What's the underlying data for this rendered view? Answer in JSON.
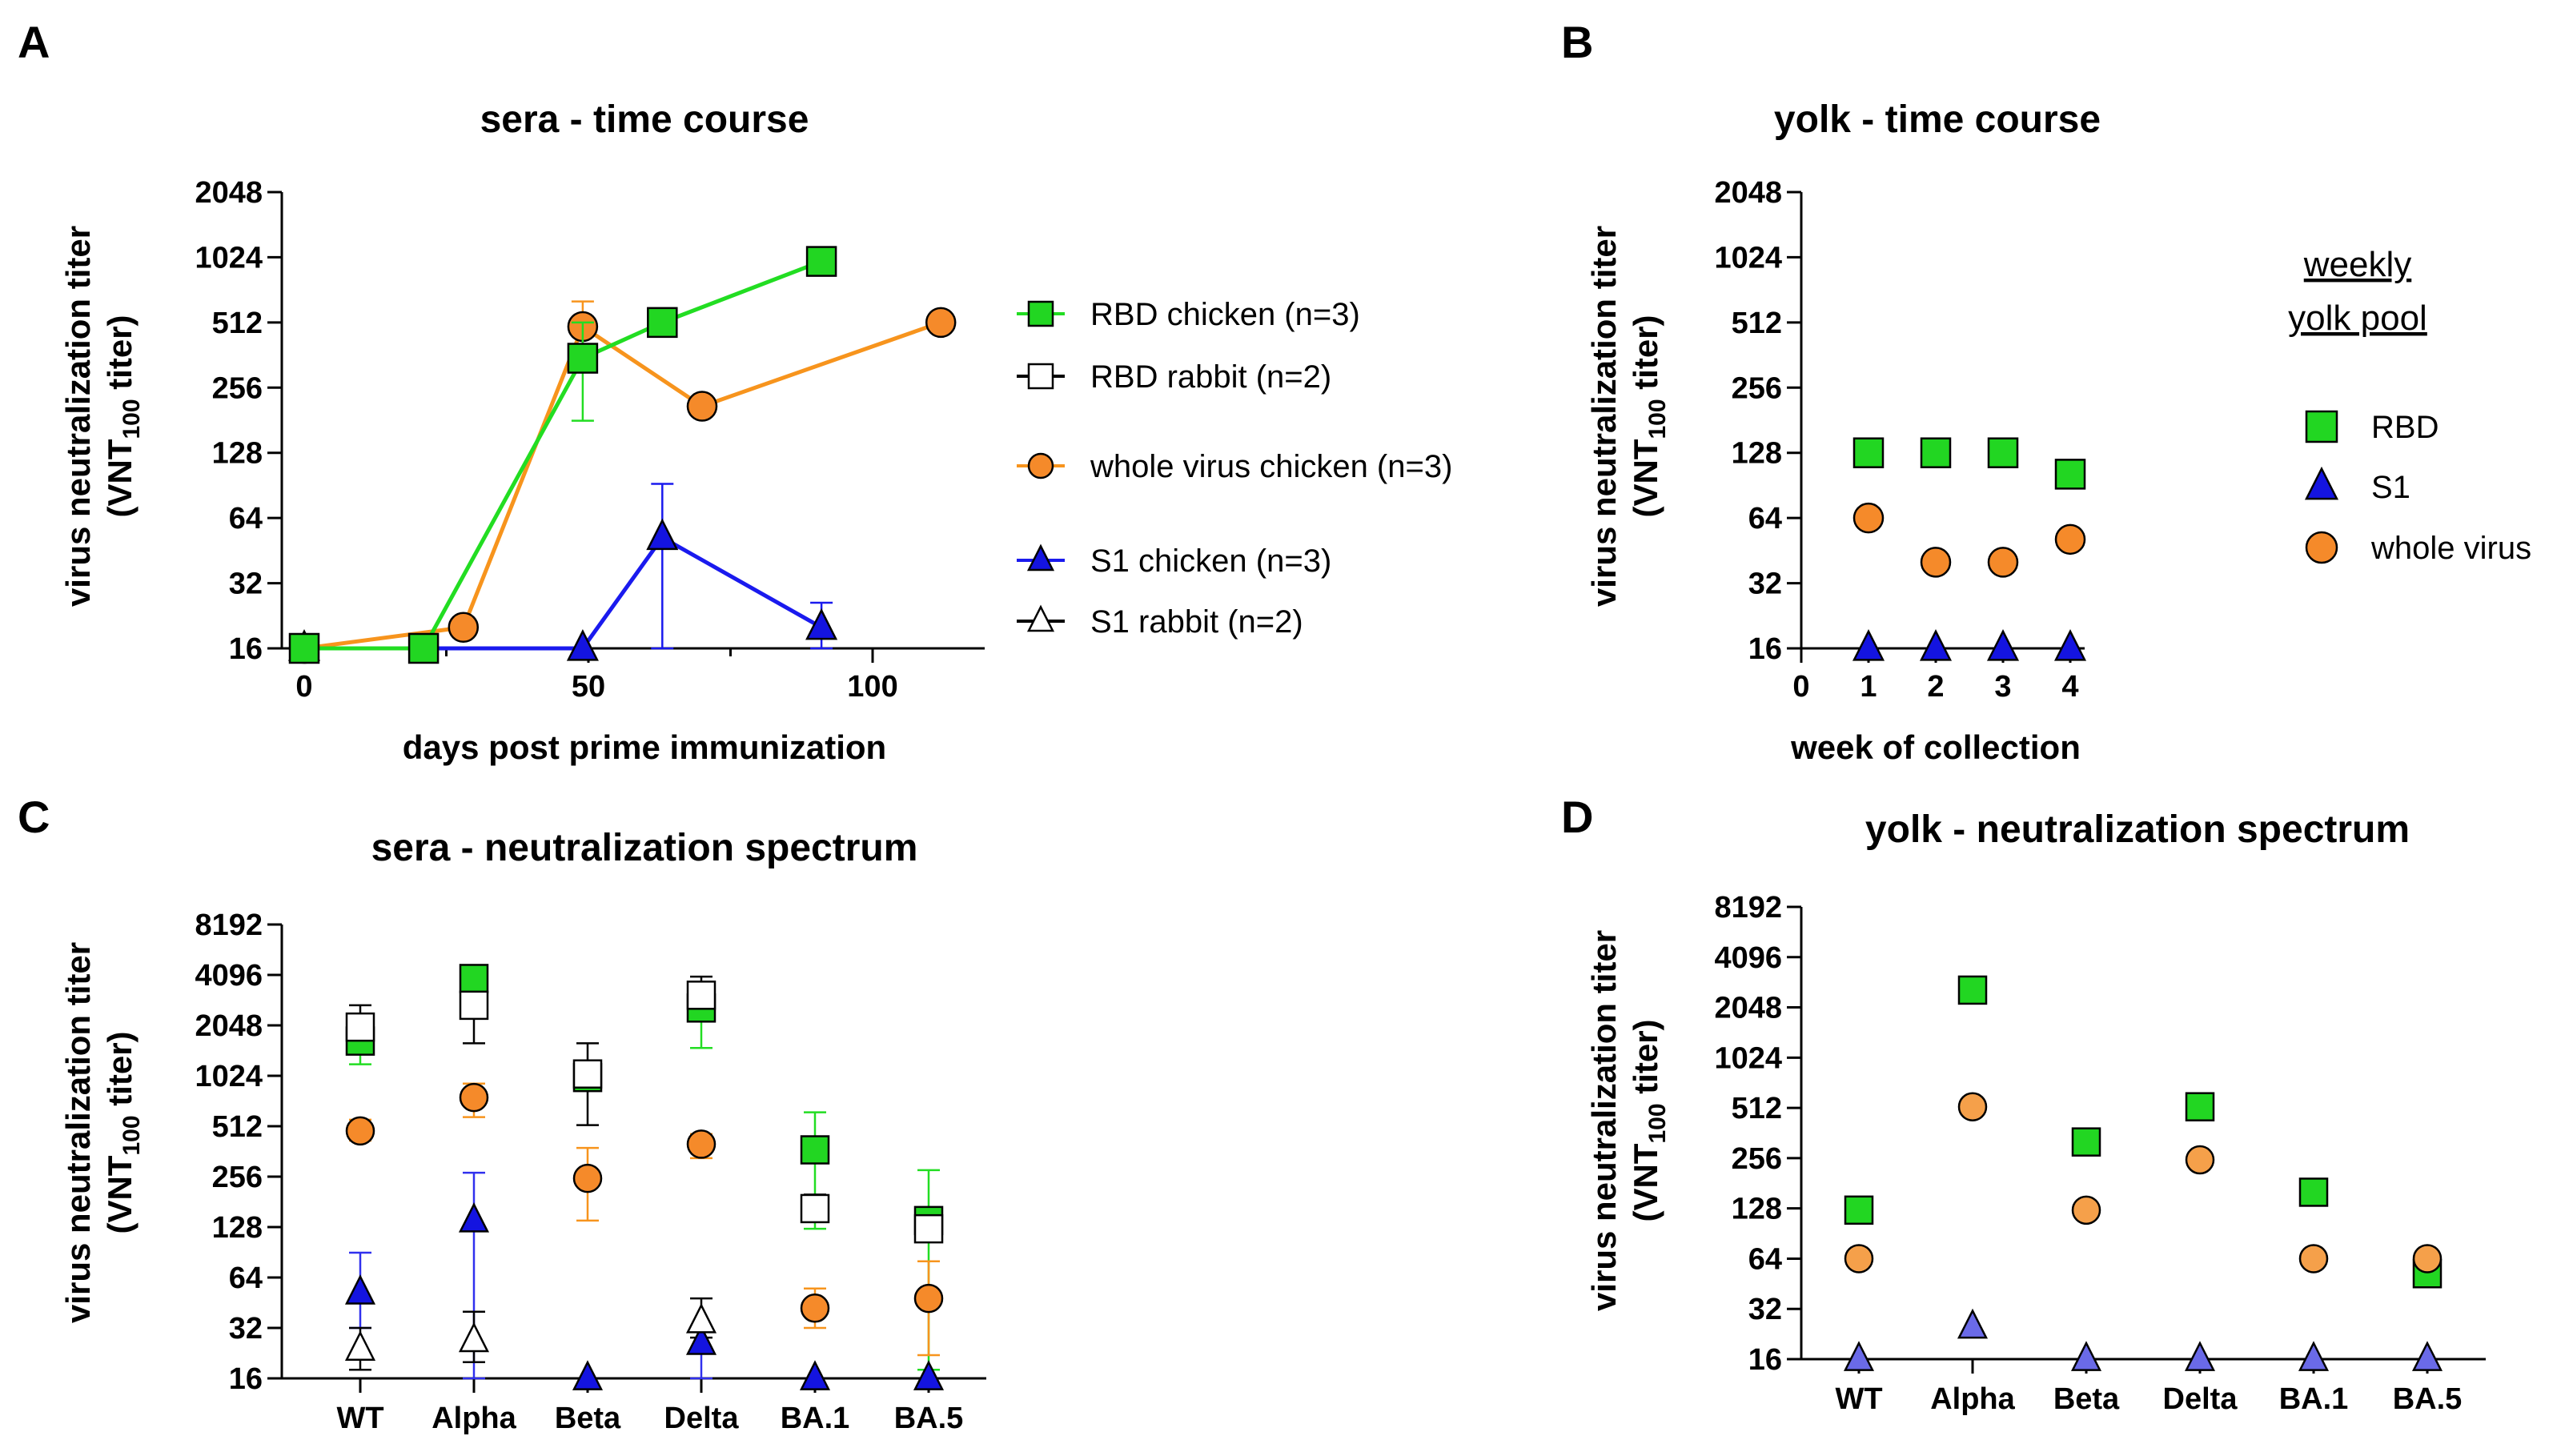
{
  "chart_data": [
    {
      "panel": "A",
      "type": "line",
      "title": "sera - time course",
      "xlabel": "days post prime immunization",
      "ylabel_line1": "virus neutralization titer",
      "ylabel_line2_main": "(VNT",
      "ylabel_line2_sub": "100",
      "ylabel_line2_end": " titer)",
      "y_scale": "log2",
      "ylim": [
        16,
        2048
      ],
      "yticks": [
        "16",
        "32",
        "64",
        "128",
        "256",
        "512",
        "1024",
        "2048"
      ],
      "xlim": [
        0,
        120
      ],
      "xticks": [
        "0",
        "50",
        "100"
      ],
      "series": [
        {
          "name": "RBD chicken (n=3)",
          "marker": "square",
          "filled": true,
          "color": "#22d622",
          "edge": "#000000",
          "line_color": "#22dd22",
          "x": [
            0,
            21,
            49,
            63,
            91
          ],
          "y": [
            16,
            16,
            350,
            512,
            980
          ],
          "err_hi": [
            0,
            0,
            512,
            0,
            1050
          ],
          "err_lo": [
            0,
            0,
            180,
            0,
            900
          ]
        },
        {
          "name": "RBD rabbit (n=2)",
          "marker": "square",
          "filled": false,
          "color": "#ffffff",
          "edge": "#000000",
          "line_color": "#000000",
          "x": [],
          "y": []
        },
        {
          "name": "whole virus chicken (n=3)",
          "marker": "circle",
          "filled": true,
          "color": "#f58a2a",
          "edge": "#000000",
          "line_color": "#f7941d",
          "x": [
            0,
            28,
            49,
            70,
            112
          ],
          "y": [
            16,
            20,
            490,
            210,
            512
          ],
          "err_hi": [
            0,
            0,
            640,
            0,
            0
          ],
          "err_lo": [
            0,
            0,
            400,
            0,
            0
          ]
        },
        {
          "name": "S1 chicken (n=3)",
          "marker": "triangle",
          "filled": true,
          "color": "#1414e0",
          "edge": "#000000",
          "line_color": "#1a1aee",
          "x": [
            0,
            49,
            63,
            91
          ],
          "y": [
            16,
            16,
            52,
            20
          ],
          "err_hi": [
            0,
            0,
            92,
            26
          ],
          "err_lo": [
            0,
            0,
            16,
            16
          ]
        },
        {
          "name": "S1 rabbit (n=2)",
          "marker": "triangle",
          "filled": false,
          "color": "#ffffff",
          "edge": "#000000",
          "line_color": "#000000",
          "x": [],
          "y": []
        }
      ]
    },
    {
      "panel": "B",
      "type": "scatter",
      "title": "yolk - time course",
      "xlabel": "week of collection",
      "ylabel_line1": "virus neutralization titer",
      "ylabel_line2_main": "(VNT",
      "ylabel_line2_sub": "100",
      "ylabel_line2_end": " titer)",
      "y_scale": "log2",
      "ylim": [
        16,
        2048
      ],
      "yticks": [
        "16",
        "32",
        "64",
        "128",
        "256",
        "512",
        "1024",
        "2048"
      ],
      "xlim": [
        0,
        4
      ],
      "xticks": [
        "0",
        "1",
        "2",
        "3",
        "4"
      ],
      "legend_title_line1": "weekly",
      "legend_title_line2": "yolk pool",
      "series": [
        {
          "name": "RBD",
          "marker": "square",
          "filled": true,
          "color": "#22d622",
          "edge": "#000000",
          "x": [
            1,
            2,
            3,
            4
          ],
          "y": [
            128,
            128,
            128,
            102
          ]
        },
        {
          "name": "S1",
          "marker": "triangle",
          "filled": true,
          "color": "#1414e0",
          "edge": "#000000",
          "x": [
            1,
            2,
            3,
            4
          ],
          "y": [
            16,
            16,
            16,
            16
          ]
        },
        {
          "name": "whole virus",
          "marker": "circle",
          "filled": true,
          "color": "#f58a2a",
          "edge": "#000000",
          "x": [
            1,
            2,
            3,
            4
          ],
          "y": [
            64,
            40,
            40,
            51
          ]
        }
      ]
    },
    {
      "panel": "C",
      "type": "scatter",
      "title": "sera - neutralization spectrum",
      "ylabel_line1": "virus neutralization titer",
      "ylabel_line2_main": "(VNT",
      "ylabel_line2_sub": "100",
      "ylabel_line2_end": " titer)",
      "y_scale": "log2",
      "ylim": [
        16,
        8192
      ],
      "yticks": [
        "16",
        "32",
        "64",
        "128",
        "256",
        "512",
        "1024",
        "2048",
        "4096",
        "8192"
      ],
      "categories": [
        "WT",
        "Alpha",
        "Beta",
        "Delta",
        "BA.1",
        "BA.5"
      ],
      "series": [
        {
          "name": "RBD chicken",
          "marker": "square",
          "filled": true,
          "color": "#22d622",
          "edge": "#000000",
          "err_color": "#22dd22",
          "values": [
            1650,
            3900,
            1000,
            2600,
            370,
            140
          ],
          "err_hi": [
            2300,
            4100,
            1100,
            3300,
            620,
            280
          ],
          "err_lo": [
            1200,
            3700,
            900,
            1500,
            125,
            18
          ]
        },
        {
          "name": "RBD rabbit",
          "marker": "square",
          "filled": false,
          "color": "#ffffff",
          "edge": "#000000",
          "err_color": "#000000",
          "values": [
            2000,
            2700,
            1050,
            3100,
            165,
            125
          ],
          "err_hi": [
            2700,
            3800,
            1600,
            4000,
            200,
            150
          ],
          "err_lo": [
            1500,
            1600,
            520,
            2400,
            140,
            110
          ]
        },
        {
          "name": "whole virus chicken",
          "marker": "circle",
          "filled": true,
          "color": "#f58a2a",
          "edge": "#000000",
          "err_color": "#f7941d",
          "values": [
            480,
            760,
            250,
            400,
            42,
            48
          ],
          "err_hi": [
            560,
            920,
            380,
            460,
            55,
            80
          ],
          "err_lo": [
            420,
            580,
            140,
            330,
            32,
            22
          ]
        },
        {
          "name": "S1 chicken",
          "marker": "triangle",
          "filled": true,
          "color": "#1414e0",
          "edge": "#000000",
          "err_color": "#3030ee",
          "values": [
            52,
            140,
            16,
            26,
            16,
            16
          ],
          "err_hi": [
            90,
            270,
            16,
            32,
            16,
            16
          ],
          "err_lo": [
            32,
            16,
            16,
            16,
            16,
            16
          ]
        },
        {
          "name": "S1 rabbit",
          "marker": "triangle",
          "filled": false,
          "color": "#ffffff",
          "edge": "#000000",
          "err_color": "#000000",
          "values": [
            24,
            27,
            null,
            35,
            null,
            null
          ],
          "err_hi": [
            32,
            40,
            null,
            48,
            null,
            null
          ],
          "err_lo": [
            18,
            20,
            null,
            28,
            null,
            null
          ]
        }
      ]
    },
    {
      "panel": "D",
      "type": "scatter",
      "title": "yolk - neutralization spectrum",
      "ylabel_line1": "virus neutralization titer",
      "ylabel_line2_main": "(VNT",
      "ylabel_line2_sub": "100",
      "ylabel_line2_end": " titer)",
      "y_scale": "log2",
      "ylim": [
        16,
        8192
      ],
      "yticks": [
        "16",
        "32",
        "64",
        "128",
        "256",
        "512",
        "1024",
        "2048",
        "4096",
        "8192"
      ],
      "categories": [
        "WT",
        "Alpha",
        "Beta",
        "Delta",
        "BA.1",
        "BA.5"
      ],
      "series": [
        {
          "name": "RBD",
          "marker": "square",
          "filled": true,
          "color": "#22d622",
          "edge": "#000000",
          "values": [
            125,
            2600,
            320,
            520,
            160,
            52
          ]
        },
        {
          "name": "whole virus",
          "marker": "circle",
          "filled": true,
          "color": "#f5a04a",
          "edge": "#000000",
          "values": [
            64,
            520,
            125,
            250,
            64,
            64
          ]
        },
        {
          "name": "S1",
          "marker": "triangle",
          "filled": true,
          "color": "#6a6ae8",
          "edge": "#000000",
          "values": [
            16,
            25,
            16,
            16,
            16,
            16
          ]
        }
      ]
    }
  ]
}
